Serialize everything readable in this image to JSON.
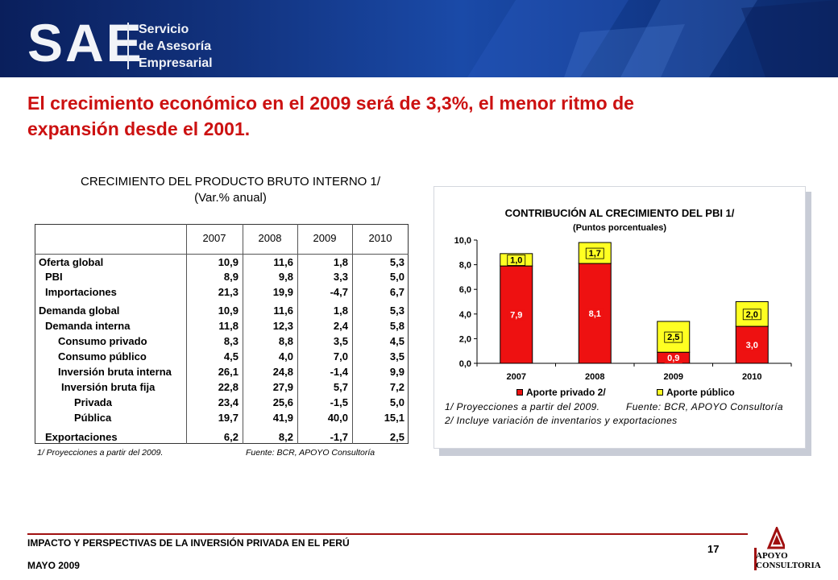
{
  "banner": {
    "logo": "SAE",
    "lines": [
      "Servicio",
      "de Asesoría",
      "Empresarial"
    ]
  },
  "title": {
    "line1": "El crecimiento económico en el 2009 será de 3,3%, el menor ritmo de",
    "line2": "expansión desde el 2001."
  },
  "table": {
    "title": "CRECIMIENTO DEL PRODUCTO BRUTO INTERNO 1/",
    "subtitle": "(Var.% anual)",
    "years": [
      "2007",
      "2008",
      "2009",
      "2010"
    ],
    "rows": [
      {
        "label": "Oferta global",
        "values": [
          "10,9",
          "11,6",
          "1,8",
          "5,3"
        ]
      },
      {
        "label": "PBI",
        "values": [
          "8,9",
          "9,8",
          "3,3",
          "5,0"
        ]
      },
      {
        "label": "Importaciones",
        "values": [
          "21,3",
          "19,9",
          "-4,7",
          "6,7"
        ]
      },
      {
        "label": "Demanda global",
        "values": [
          "10,9",
          "11,6",
          "1,8",
          "5,3"
        ]
      },
      {
        "label": "Demanda interna",
        "values": [
          "11,8",
          "12,3",
          "2,4",
          "5,8"
        ]
      },
      {
        "label": "Consumo privado",
        "values": [
          "8,3",
          "8,8",
          "3,5",
          "4,5"
        ]
      },
      {
        "label": "Consumo público",
        "values": [
          "4,5",
          "4,0",
          "7,0",
          "3,5"
        ]
      },
      {
        "label": "Inversión bruta interna",
        "values": [
          "26,1",
          "24,8",
          "-1,4",
          "9,9"
        ]
      },
      {
        "label": "Inversión bruta fija",
        "values": [
          "22,8",
          "27,9",
          "5,7",
          "7,2"
        ]
      },
      {
        "label": "Privada",
        "values": [
          "23,4",
          "25,6",
          "-1,5",
          "5,0"
        ]
      },
      {
        "label": "Pública",
        "values": [
          "19,7",
          "41,9",
          "40,0",
          "15,1"
        ]
      },
      {
        "label": "Exportaciones",
        "values": [
          "6,2",
          "8,2",
          "-1,7",
          "2,5"
        ]
      }
    ],
    "note_left": "1/ Proyecciones a partir del 2009.",
    "note_right": "Fuente: BCR, APOYO Consultoría"
  },
  "chart_data": {
    "type": "bar",
    "stacked": true,
    "title": "CONTRIBUCIÓN AL CRECIMIENTO DEL PBI 1/",
    "subtitle": "(Puntos porcentuales)",
    "categories": [
      "2007",
      "2008",
      "2009",
      "2010"
    ],
    "series": [
      {
        "name": "Aporte privado 2/",
        "color": "#ee1111",
        "values": [
          7.9,
          8.1,
          0.9,
          3.0
        ],
        "labels": [
          "7,9",
          "8,1",
          "0,9",
          "3,0"
        ]
      },
      {
        "name": "Aporte público",
        "color": "#ffff22",
        "values": [
          1.0,
          1.7,
          2.5,
          2.0
        ],
        "labels": [
          "1,0",
          "1,7",
          "2,5",
          "2,0"
        ]
      }
    ],
    "ylim": [
      0,
      10
    ],
    "yticks": [
      "0,0",
      "2,0",
      "4,0",
      "6,0",
      "8,0",
      "10,0"
    ],
    "grid": false,
    "legend": "bottom",
    "notes": [
      "1/ Proyecciones a partir del 2009.",
      "Fuente: BCR, APOYO Consultoría",
      "2/ Incluye variación de inventarios y exportaciones"
    ]
  },
  "footer": {
    "line1": "IMPACTO Y PERSPECTIVAS DE LA INVERSIÓN PRIVADA EN EL PERÚ",
    "line2": "MAYO 2009",
    "page": "17",
    "brand_line1": "APOYO",
    "brand_line2": "CONSULTORIA"
  },
  "colors": {
    "title_red": "#cc1111",
    "banner_blue": "#12337f",
    "footer_red": "#a01010"
  }
}
